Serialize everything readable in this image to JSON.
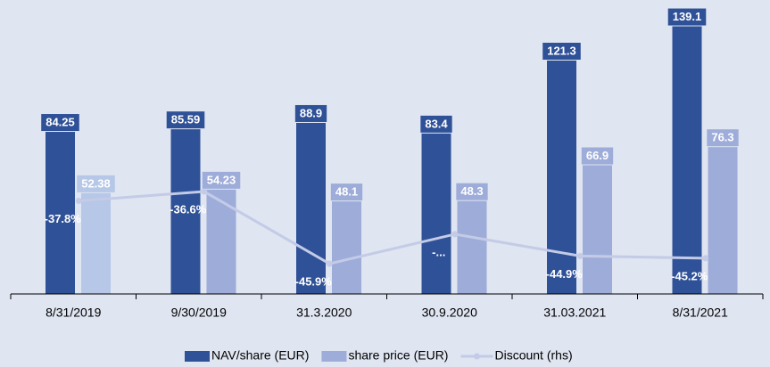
{
  "chart_data": {
    "type": "bar",
    "categories": [
      "8/31/2019",
      "9/30/2019",
      "31.3.2020",
      "30.9.2020",
      "31.03.2021",
      "8/31/2021"
    ],
    "series": [
      {
        "name": "NAV/share (EUR)",
        "type": "bar",
        "color": "#2f5197",
        "values": [
          84.25,
          85.59,
          88.9,
          83.4,
          121.3,
          139.1
        ]
      },
      {
        "name": "share price (EUR)",
        "type": "bar",
        "color": "#9eacd9",
        "colors": [
          "#b6c7e8",
          "#9eacd9",
          "#9eacd9",
          "#9eacd9",
          "#9eacd9",
          "#9eacd9"
        ],
        "values": [
          52.38,
          54.23,
          48.1,
          48.3,
          66.9,
          76.3
        ]
      },
      {
        "name": "Discount (rhs)",
        "type": "line",
        "axis": "y2",
        "color": "#c3cbe7",
        "values": [
          -37.8,
          -36.6,
          -45.9,
          -42.1,
          -44.9,
          -45.2
        ],
        "value_labels": [
          "-37.8%",
          "-36.6%",
          "-45.9%",
          "-...",
          "-44.9%",
          "-45.2%"
        ]
      }
    ],
    "ylim": [
      0,
      150
    ],
    "y2lim": [
      -49.8,
      -12.6
    ],
    "legend": "bottom"
  }
}
